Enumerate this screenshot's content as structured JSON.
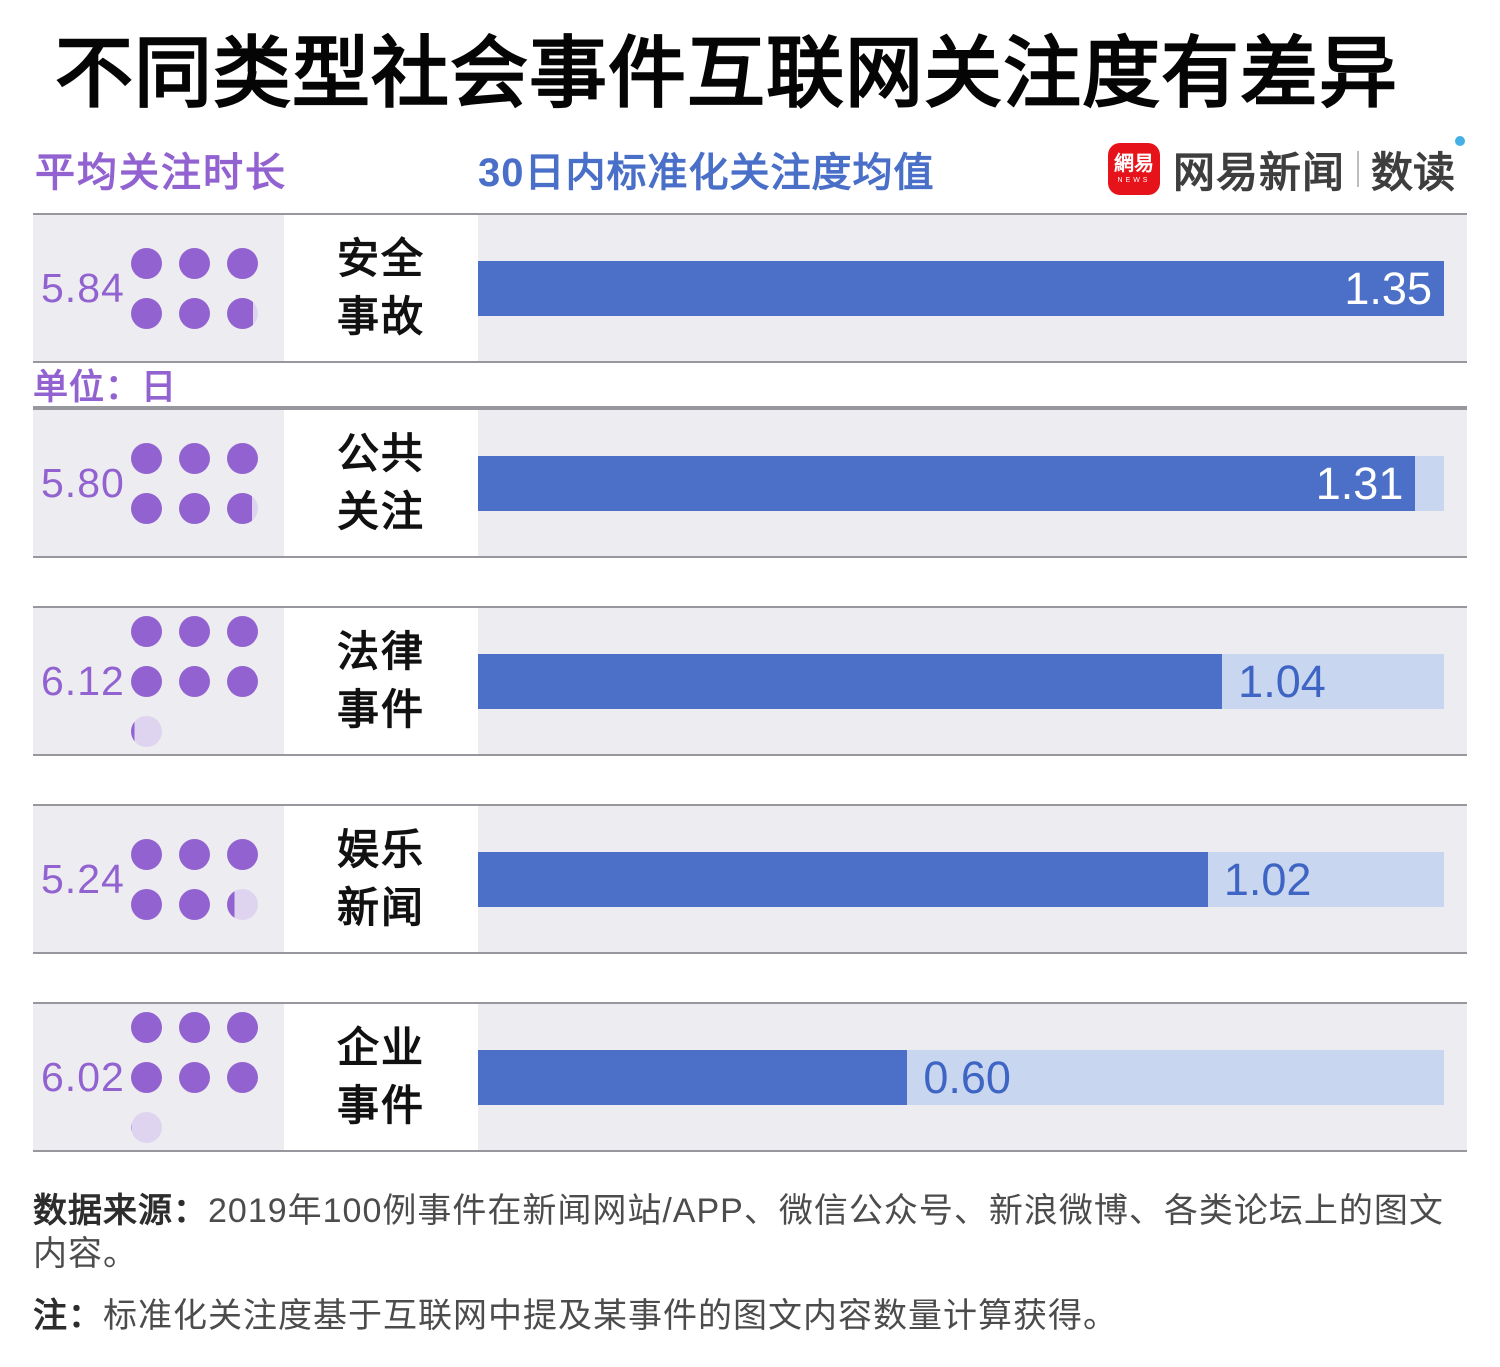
{
  "title": "不同类型社会事件互联网关注度有差异",
  "legend": {
    "left_label": "平均关注时长",
    "right_label": "30日内标准化关注度均值",
    "unit_note": "单位：日"
  },
  "logo": {
    "badge_text": "網易",
    "badge_subtext": "NEWS",
    "brand": "网易新闻",
    "sub_brand": "数读"
  },
  "rows": [
    {
      "duration": "5.84",
      "category": [
        "安全",
        "事故"
      ],
      "value": "1.35"
    },
    {
      "duration": "5.80",
      "category": [
        "公共",
        "关注"
      ],
      "value": "1.31"
    },
    {
      "duration": "6.12",
      "category": [
        "法律",
        "事件"
      ],
      "value": "1.04"
    },
    {
      "duration": "5.24",
      "category": [
        "娱乐",
        "新闻"
      ],
      "value": "1.02"
    },
    {
      "duration": "6.02",
      "category": [
        "企业",
        "事件"
      ],
      "value": "0.60"
    }
  ],
  "chart_data": {
    "type": "bar",
    "orientation": "horizontal",
    "title": "不同类型社会事件互联网关注度有差异",
    "categories": [
      "安全事故",
      "公共关注",
      "法律事件",
      "娱乐新闻",
      "企业事件"
    ],
    "series": [
      {
        "name": "平均关注时长",
        "unit": "日",
        "values": [
          5.84,
          5.8,
          6.12,
          5.24,
          6.02
        ]
      },
      {
        "name": "30日内标准化关注度均值",
        "values": [
          1.35,
          1.31,
          1.04,
          1.02,
          0.6
        ]
      }
    ],
    "bar_axis_max": 1.35,
    "grid": false,
    "value_labels_shown": true,
    "legend_position": "top"
  },
  "footer": {
    "source_label": "数据来源：",
    "source_text": "2019年100例事件在新闻网站/APP、微信公众号、新浪微博、各类论坛上的图文内容。",
    "note_label": "注：",
    "note_text": "标准化关注度基于互联网中提及某事件的图文内容数量计算获得。"
  },
  "colors": {
    "dot_purple": "#9263d0",
    "dot_partial_lavender": "#ded4f0",
    "bar_blue": "#4c70c7",
    "bar_track_blue": "#c9d6f0",
    "row_background": "#ededf1",
    "divider_line": "#97979e",
    "legend_blue": "#4a6fc8",
    "logo_red": "#e7131a"
  }
}
